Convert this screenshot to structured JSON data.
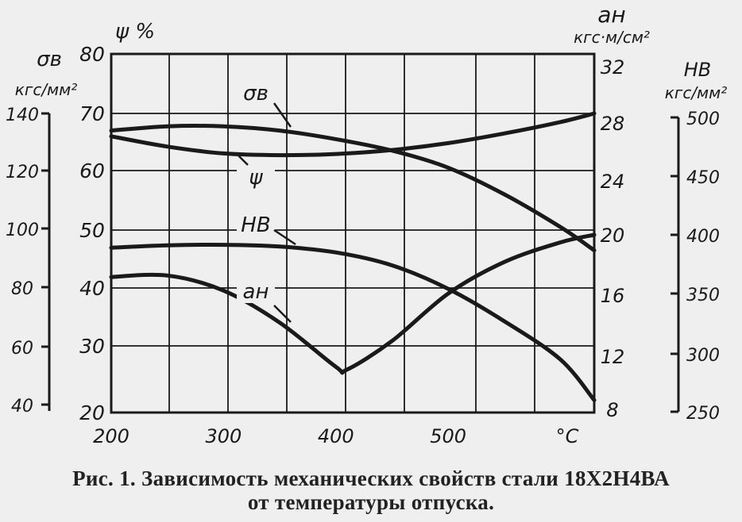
{
  "chart_data": {
    "type": "line",
    "xlabel": "°C",
    "x_ticks": [
      "200",
      "300",
      "400",
      "500"
    ],
    "xlim": [
      200,
      630
    ],
    "axes": {
      "sigma_b": {
        "label": "σв",
        "unit": "кгс/мм²",
        "ticks": [
          "140",
          "120",
          "100",
          "80",
          "60",
          "40"
        ],
        "range": [
          40,
          140
        ]
      },
      "psi": {
        "label": "ψ %",
        "ticks": [
          "80",
          "70",
          "60",
          "50",
          "40",
          "30",
          "20"
        ],
        "range": [
          20,
          80
        ]
      },
      "a_n": {
        "label": "aн",
        "unit": "кгс·м/см²",
        "ticks": [
          "32",
          "28",
          "24",
          "20",
          "16",
          "12",
          "8"
        ],
        "range": [
          8,
          32
        ]
      },
      "hb": {
        "label": "НВ",
        "unit": "кгс/мм²",
        "ticks": [
          "500",
          "450",
          "400",
          "350",
          "300",
          "250"
        ],
        "range": [
          250,
          500
        ]
      }
    },
    "series": [
      {
        "name": "σв",
        "axis": "sigma_b",
        "x": [
          200,
          250,
          300,
          350,
          400,
          450,
          500,
          550,
          600,
          630
        ],
        "values": [
          134,
          135.5,
          135.5,
          134,
          131,
          127,
          121,
          112,
          101,
          93
        ]
      },
      {
        "name": "ψ",
        "axis": "psi",
        "x": [
          200,
          250,
          300,
          350,
          400,
          450,
          500,
          550,
          600,
          630
        ],
        "values": [
          66,
          64.2,
          63,
          62.7,
          62.9,
          63.6,
          64.8,
          66.5,
          68.5,
          70
        ]
      },
      {
        "name": "НВ",
        "axis": "hb",
        "x": [
          200,
          250,
          300,
          350,
          400,
          450,
          500,
          550,
          600,
          630
        ],
        "values": [
          389,
          391,
          391.5,
          390,
          385,
          374,
          354,
          327,
          295,
          260
        ]
      },
      {
        "name": "aн",
        "axis": "a_n",
        "x": [
          200,
          250,
          300,
          350,
          400,
          410,
          450,
          500,
          550,
          600,
          630
        ],
        "values": [
          17.2,
          17.3,
          16.3,
          14.2,
          11.2,
          11.0,
          13.0,
          16.1,
          18.2,
          19.5,
          20.0
        ]
      }
    ]
  },
  "caption": {
    "line1": "Рис. 1. Зависимость механических свойств стали 18Х2Н4ВА",
    "line2": "от температуры отпуска."
  }
}
